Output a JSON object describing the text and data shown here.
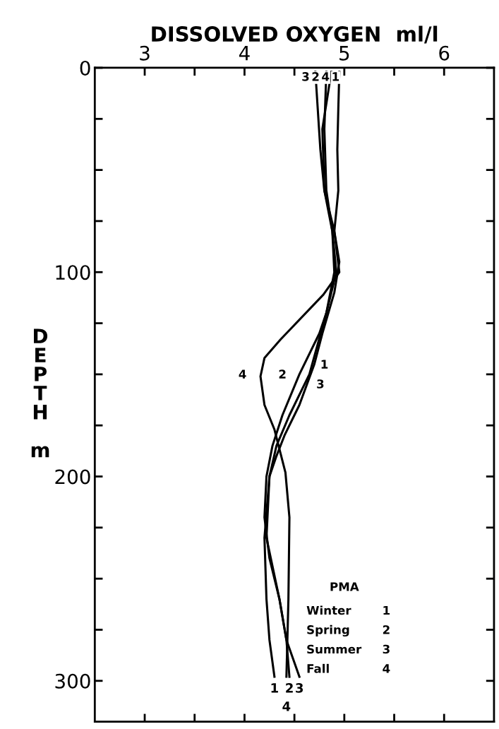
{
  "chart_data": {
    "type": "line",
    "xlabel": "DISSOLVED OXYGEN  ml/l",
    "ylabel": "D\nE\nP\nT\nH\n\nm",
    "legend_title": "PMA",
    "xlim": [
      2.5,
      6.5
    ],
    "xticks": [
      3,
      {
        "value": 3.5,
        "label": null
      },
      4,
      {
        "value": 4.5,
        "label": null
      },
      5,
      {
        "value": 5.5,
        "label": null
      },
      6
    ],
    "ylim": [
      320,
      0
    ],
    "yticks": [
      0,
      {
        "value": 25,
        "label": null
      },
      {
        "value": 50,
        "label": null
      },
      {
        "value": 75,
        "label": null
      },
      100,
      {
        "value": 125,
        "label": null
      },
      {
        "value": 150,
        "label": null
      },
      {
        "value": 175,
        "label": null
      },
      200,
      {
        "value": 225,
        "label": null
      },
      {
        "value": 250,
        "label": null
      },
      {
        "value": 275,
        "label": null
      },
      300
    ],
    "grid": false,
    "legend": false,
    "marker": "none",
    "line_style": "solid",
    "series": [
      {
        "name": "1",
        "color": "#000000",
        "x": [
          4.95,
          4.94,
          4.93,
          4.94,
          4.9,
          4.95,
          4.9,
          4.78,
          4.7,
          4.55,
          4.4,
          4.32,
          4.25,
          4.2,
          4.22,
          4.25,
          4.3
        ],
        "values": [
          2,
          20,
          40,
          60,
          80,
          95,
          110,
          130,
          145,
          165,
          180,
          190,
          200,
          230,
          260,
          280,
          298
        ]
      },
      {
        "name": "2",
        "color": "#000000",
        "x": [
          4.82,
          4.8,
          4.82,
          4.88,
          4.92,
          4.82,
          4.75,
          4.55,
          4.38,
          4.28,
          4.22,
          4.2,
          4.25,
          4.35,
          4.42,
          4.45
        ],
        "values": [
          2,
          30,
          60,
          80,
          100,
          120,
          130,
          150,
          170,
          185,
          200,
          220,
          240,
          260,
          280,
          298
        ]
      },
      {
        "name": "3",
        "color": "#000000",
        "x": [
          4.71,
          4.76,
          4.8,
          4.88,
          4.9,
          4.82,
          4.65,
          4.45,
          4.32,
          4.25,
          4.22,
          4.35,
          4.42,
          4.55
        ],
        "values": [
          2,
          40,
          60,
          80,
          100,
          120,
          150,
          170,
          185,
          200,
          230,
          260,
          280,
          298
        ]
      },
      {
        "name": "4",
        "color": "#000000",
        "x": [
          4.87,
          4.78,
          4.8,
          4.9,
          4.95,
          4.79,
          4.36,
          4.2,
          4.16,
          4.2,
          4.3,
          4.41,
          4.45,
          4.44,
          4.42
        ],
        "values": [
          2,
          30,
          60,
          80,
          100,
          111,
          133,
          142,
          151,
          165,
          177,
          198,
          220,
          260,
          298
        ]
      }
    ],
    "annotations": [
      "3",
      "2",
      "4",
      "1",
      "4",
      "2",
      "1",
      "3",
      "Winter",
      "Spring",
      "Summer",
      "Fall"
    ]
  }
}
